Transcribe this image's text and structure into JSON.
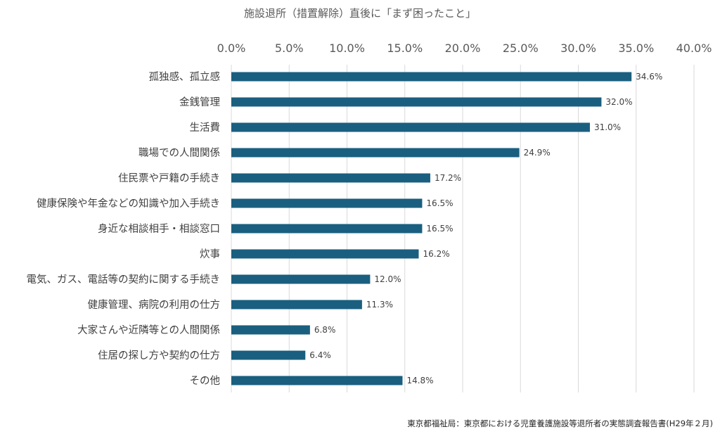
{
  "chart_data": {
    "type": "bar",
    "orientation": "horizontal",
    "title": "施設退所（措置解除）直後に「まず困ったこと」",
    "categories": [
      "孤独感、孤立感",
      "金銭管理",
      "生活費",
      "職場での人間関係",
      "住民票や戸籍の手続き",
      "健康保険や年金などの知識や加入手続き",
      "身近な相談相手・相談窓口",
      "炊事",
      "電気、ガス、電話等の契約に関する手続き",
      "健康管理、病院の利用の仕方",
      "大家さんや近隣等との人間関係",
      "住居の探し方や契約の仕方",
      "その他"
    ],
    "values": [
      34.6,
      32.0,
      31.0,
      24.9,
      17.2,
      16.5,
      16.5,
      16.2,
      12.0,
      11.3,
      6.8,
      6.4,
      14.8
    ],
    "data_labels": [
      "34.6%",
      "32.0%",
      "31.0%",
      "24.9%",
      "17.2%",
      "16.5%",
      "16.5%",
      "16.2%",
      "12.0%",
      "11.3%",
      "6.8%",
      "6.4%",
      "14.8%"
    ],
    "xlim": [
      0,
      40
    ],
    "xticks": [
      0,
      5,
      10,
      15,
      20,
      25,
      30,
      35,
      40
    ],
    "xtick_labels": [
      "0.0%",
      "5.0%",
      "10.0%",
      "15.0%",
      "20.0%",
      "25.0%",
      "30.0%",
      "35.0%",
      "40.0%"
    ],
    "xaxis_position": "top",
    "grid": true,
    "bar_color": "#1a5f7f",
    "xlabel": "",
    "ylabel": ""
  },
  "source": "東京都福祉局：東京都における児童養護施設等退所者の実態調査報告書(H29年２月)"
}
